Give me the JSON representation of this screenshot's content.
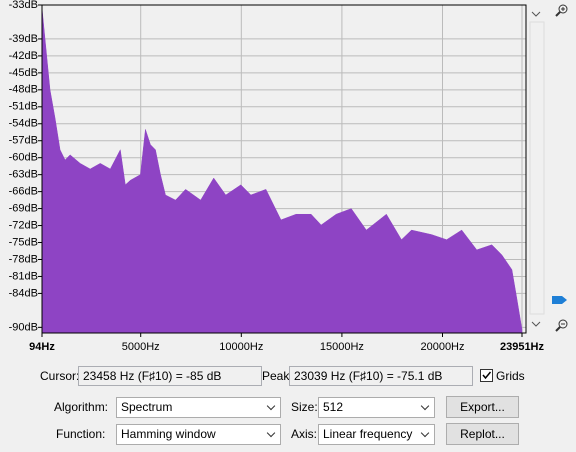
{
  "chart_data": {
    "type": "area",
    "color": "#8e44c4",
    "grid": true,
    "x": [
      94,
      244,
      493,
      743,
      992,
      1242,
      1491,
      1990,
      2489,
      2988,
      3487,
      3986,
      4236,
      4485,
      4984,
      5234,
      5484,
      5733,
      5983,
      6232,
      6731,
      7230,
      7979,
      8628,
      9227,
      9976,
      10475,
      11223,
      11972,
      12720,
      13469,
      13968,
      14716,
      15465,
      16213,
      17211,
      17960,
      18459,
      19457,
      20205,
      20954,
      21703,
      22451,
      22950,
      23449,
      23699,
      23951
    ],
    "values": [
      -33.5,
      -39,
      -48,
      -53,
      -58.6,
      -60.4,
      -59.5,
      -61,
      -62,
      -61,
      -62,
      -58.6,
      -64.8,
      -64,
      -63,
      -55,
      -57.7,
      -58.6,
      -63,
      -66.6,
      -67.5,
      -65.6,
      -67.5,
      -63.6,
      -66.6,
      -64.8,
      -66.6,
      -65.6,
      -71,
      -70,
      -70,
      -71.9,
      -70,
      -69,
      -72.8,
      -70,
      -74.5,
      -72.8,
      -73.6,
      -74.5,
      -72.8,
      -76.3,
      -75.4,
      -77.2,
      -79.8,
      -85,
      -90.4
    ],
    "xlim": [
      94,
      23951
    ],
    "xticks": [
      {
        "value": 94,
        "label": "94Hz"
      },
      {
        "value": 5000,
        "label": "5000Hz"
      },
      {
        "value": 10000,
        "label": "10000Hz"
      },
      {
        "value": 15000,
        "label": "15000Hz"
      },
      {
        "value": 20000,
        "label": "20000Hz"
      },
      {
        "value": 23951,
        "label": "23951Hz"
      }
    ],
    "ylim": [
      -91,
      -33
    ],
    "yticks": [
      {
        "value": -33,
        "label": "-33dB"
      },
      {
        "value": -39,
        "label": "-39dB"
      },
      {
        "value": -42,
        "label": "-42dB"
      },
      {
        "value": -45,
        "label": "-45dB"
      },
      {
        "value": -48,
        "label": "-48dB"
      },
      {
        "value": -51,
        "label": "-51dB"
      },
      {
        "value": -54,
        "label": "-54dB"
      },
      {
        "value": -57,
        "label": "-57dB"
      },
      {
        "value": -60,
        "label": "-60dB"
      },
      {
        "value": -63,
        "label": "-63dB"
      },
      {
        "value": -66,
        "label": "-66dB"
      },
      {
        "value": -69,
        "label": "-69dB"
      },
      {
        "value": -72,
        "label": "-72dB"
      },
      {
        "value": -75,
        "label": "-75dB"
      },
      {
        "value": -78,
        "label": "-78dB"
      },
      {
        "value": -81,
        "label": "-81dB"
      },
      {
        "value": -84,
        "label": "-84dB"
      },
      {
        "value": -90,
        "label": "-90dB"
      }
    ]
  },
  "controls": {
    "cursor_label": "Cursor:",
    "cursor_value": "23458 Hz (F♯10) = -85 dB",
    "peak_label": "Peak:",
    "peak_value": "23039 Hz (F♯10) = -75.1 dB",
    "grids_label": "Grids",
    "grids_checked": true,
    "algorithm_label": "Algorithm:",
    "algorithm_value": "Spectrum",
    "size_label": "Size:",
    "size_value": "512",
    "export_button": "Export...",
    "function_label": "Function:",
    "function_value": "Hamming window",
    "axis_label": "Axis:",
    "axis_value": "Linear frequency",
    "replot_button": "Replot..."
  }
}
